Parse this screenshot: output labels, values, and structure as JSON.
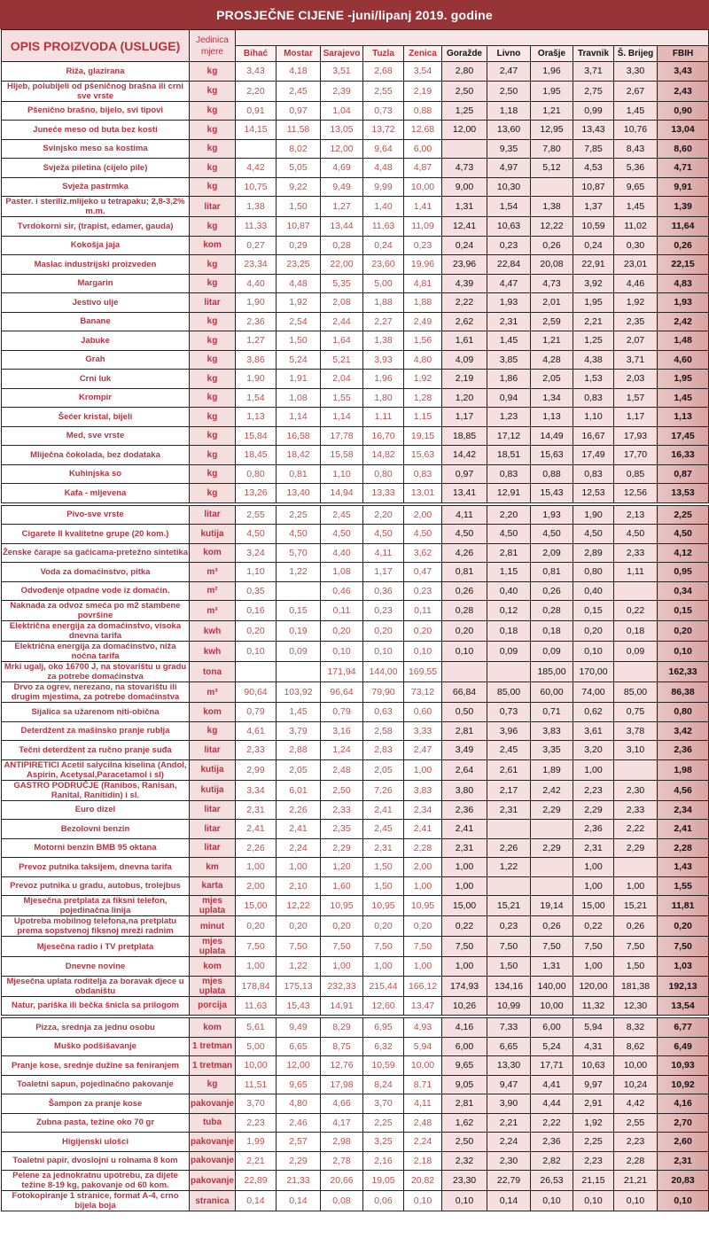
{
  "title": "PROSJEČNE CIJENE -juni/lipanj 2019. godine",
  "header": {
    "description": "OPIS PROIZVODA (USLUGE)",
    "unit": "Jedinica mjere",
    "cities": [
      "Bihać",
      "Mostar",
      "Sarajevo",
      "Tuzla",
      "Zenica",
      "Goražde",
      "Livno",
      "Orašje",
      "Travnik",
      "Š. Brijeg"
    ],
    "total": "FBIH"
  },
  "colors": {
    "title_bg": "#963437",
    "text_red": "#b8333f",
    "cell_pink": "#f5dfdf",
    "fbih_bg": "#e3b2b2"
  },
  "sections": [
    [
      {
        "name": "Riža, glazirana",
        "unit": "kg",
        "values": [
          "3,43",
          "4,18",
          "3,51",
          "2,68",
          "3,54",
          "2,80",
          "2,47",
          "1,96",
          "3,71",
          "3,30"
        ],
        "fbih": "3,43"
      },
      {
        "name": "Hljeb, polubijeli od pšeničnog brašna ili crni sve vrste",
        "unit": "kg",
        "values": [
          "2,20",
          "2,45",
          "2,39",
          "2,55",
          "2,19",
          "2,50",
          "2,50",
          "1,95",
          "2,75",
          "2,67"
        ],
        "fbih": "2,43"
      },
      {
        "name": "Pšenično brašno, bijelo, svi tipovi",
        "unit": "kg",
        "values": [
          "0,91",
          "0,97",
          "1,04",
          "0,73",
          "0,88",
          "1,25",
          "1,18",
          "1,21",
          "0,99",
          "1,45"
        ],
        "fbih": "0,90"
      },
      {
        "name": "Juneće meso od buta bez kosti",
        "unit": "kg",
        "values": [
          "14,15",
          "11,58",
          "13,05",
          "13,72",
          "12,68",
          "12,00",
          "13,60",
          "12,95",
          "13,43",
          "10,76"
        ],
        "fbih": "13,04"
      },
      {
        "name": "Svinjsko meso sa kostima",
        "unit": "kg",
        "values": [
          "",
          "8,02",
          "12,00",
          "9,64",
          "6,00",
          "",
          "9,35",
          "7,80",
          "7,85",
          "8,43"
        ],
        "fbih": "8,60"
      },
      {
        "name": "Svježa piletina (cijelo pile)",
        "unit": "kg",
        "values": [
          "4,42",
          "5,05",
          "4,69",
          "4,48",
          "4,87",
          "4,73",
          "4,97",
          "5,12",
          "4,53",
          "5,36"
        ],
        "fbih": "4,71"
      },
      {
        "name": "Svježa pastrmka",
        "unit": "kg",
        "values": [
          "10,75",
          "9,22",
          "9,49",
          "9,99",
          "10,00",
          "9,00",
          "10,30",
          "",
          "10,87",
          "9,65"
        ],
        "fbih": "9,91"
      },
      {
        "name": "Paster. i steriliz.mlijeko u tetrapaku; 2,8-3,2% m.m.",
        "unit": "litar",
        "values": [
          "1,38",
          "1,50",
          "1,27",
          "1,40",
          "1,41",
          "1,31",
          "1,54",
          "1,38",
          "1,37",
          "1,45"
        ],
        "fbih": "1,39"
      },
      {
        "name": "Tvrdokorni sir, (trapist, edamer, gauda)",
        "unit": "kg",
        "values": [
          "11,33",
          "10,87",
          "13,44",
          "11,63",
          "11,09",
          "12,41",
          "10,63",
          "12,22",
          "10,59",
          "11,02"
        ],
        "fbih": "11,64"
      },
      {
        "name": "Kokošja jaja",
        "unit": "kom",
        "values": [
          "0,27",
          "0,29",
          "0,28",
          "0,24",
          "0,23",
          "0,24",
          "0,23",
          "0,26",
          "0,24",
          "0,30"
        ],
        "fbih": "0,26"
      },
      {
        "name": "Maslac industrijski proizveden",
        "unit": "kg",
        "values": [
          "23,34",
          "23,25",
          "22,00",
          "23,60",
          "19,96",
          "23,96",
          "22,84",
          "20,08",
          "22,91",
          "23,01"
        ],
        "fbih": "22,15"
      },
      {
        "name": "Margarin",
        "unit": "kg",
        "values": [
          "4,40",
          "4,48",
          "5,35",
          "5,00",
          "4,81",
          "4,39",
          "4,47",
          "4,73",
          "3,92",
          "4,46"
        ],
        "fbih": "4,83"
      },
      {
        "name": "Jestivo ulje",
        "unit": "litar",
        "values": [
          "1,90",
          "1,92",
          "2,08",
          "1,88",
          "1,88",
          "2,22",
          "1,93",
          "2,01",
          "1,95",
          "1,92"
        ],
        "fbih": "1,93"
      },
      {
        "name": "Banane",
        "unit": "kg",
        "values": [
          "2,36",
          "2,54",
          "2,44",
          "2,27",
          "2,49",
          "2,62",
          "2,31",
          "2,59",
          "2,21",
          "2,35"
        ],
        "fbih": "2,42"
      },
      {
        "name": "Jabuke",
        "unit": "kg",
        "values": [
          "1,27",
          "1,50",
          "1,64",
          "1,38",
          "1,56",
          "1,61",
          "1,45",
          "1,21",
          "1,25",
          "2,07"
        ],
        "fbih": "1,48"
      },
      {
        "name": "Grah",
        "unit": "kg",
        "values": [
          "3,86",
          "5,24",
          "5,21",
          "3,93",
          "4,80",
          "4,09",
          "3,85",
          "4,28",
          "4,38",
          "3,71"
        ],
        "fbih": "4,60"
      },
      {
        "name": "Crni luk",
        "unit": "kg",
        "values": [
          "1,90",
          "1,91",
          "2,04",
          "1,96",
          "1,92",
          "2,19",
          "1,86",
          "2,05",
          "1,53",
          "2,03"
        ],
        "fbih": "1,95"
      },
      {
        "name": "Krompir",
        "unit": "kg",
        "values": [
          "1,54",
          "1,08",
          "1,55",
          "1,80",
          "1,28",
          "1,20",
          "0,94",
          "1,34",
          "0,83",
          "1,57"
        ],
        "fbih": "1,45"
      },
      {
        "name": "Šećer kristal, bijeli",
        "unit": "kg",
        "values": [
          "1,13",
          "1,14",
          "1,14",
          "1,11",
          "1,15",
          "1,17",
          "1,23",
          "1,13",
          "1,10",
          "1,17"
        ],
        "fbih": "1,13"
      },
      {
        "name": "Med, sve vrste",
        "unit": "kg",
        "values": [
          "15,84",
          "16,58",
          "17,78",
          "16,70",
          "19,15",
          "18,85",
          "17,12",
          "14,49",
          "16,67",
          "17,93"
        ],
        "fbih": "17,45"
      },
      {
        "name": "Mliječna čokolada, bez dodataka",
        "unit": "kg",
        "values": [
          "18,45",
          "18,42",
          "15,58",
          "14,82",
          "15,63",
          "14,42",
          "18,51",
          "15,63",
          "17,49",
          "17,70"
        ],
        "fbih": "16,33"
      },
      {
        "name": "Kuhinjska so",
        "unit": "kg",
        "values": [
          "0,80",
          "0,81",
          "1,10",
          "0,80",
          "0,83",
          "0,97",
          "0,83",
          "0,88",
          "0,83",
          "0,85"
        ],
        "fbih": "0,87"
      },
      {
        "name": "Kafa - mljevena",
        "unit": "kg",
        "values": [
          "13,26",
          "13,40",
          "14,94",
          "13,33",
          "13,01",
          "13,41",
          "12,91",
          "15,43",
          "12,53",
          "12,56"
        ],
        "fbih": "13,53"
      }
    ],
    [
      {
        "name": "Pivo-sve vrste",
        "unit": "litar",
        "values": [
          "2,55",
          "2,25",
          "2,45",
          "2,20",
          "2,00",
          "4,11",
          "2,20",
          "1,93",
          "1,90",
          "2,13"
        ],
        "fbih": "2,25"
      },
      {
        "name": "Cigarete II kvalitetne grupe (20 kom.)",
        "unit": "kutija",
        "values": [
          "4,50",
          "4,50",
          "4,50",
          "4,50",
          "4,50",
          "4,50",
          "4,50",
          "4,50",
          "4,50",
          "4,50"
        ],
        "fbih": "4,50"
      },
      {
        "name": "Ženske čarape sa gaćicama-pretežno sintetika",
        "unit": "kom",
        "values": [
          "3,24",
          "5,70",
          "4,40",
          "4,11",
          "3,62",
          "4,26",
          "2,81",
          "2,09",
          "2,89",
          "2,33"
        ],
        "fbih": "4,12"
      },
      {
        "name": "Voda za domaćinstvo, pitka",
        "unit": "m³",
        "values": [
          "1,10",
          "1,22",
          "1,08",
          "1,17",
          "0,47",
          "0,81",
          "1,15",
          "0,81",
          "0,80",
          "1,11"
        ],
        "fbih": "0,95"
      },
      {
        "name": "Odvođenje otpadne vode iz domaćin.",
        "unit": "m²",
        "values": [
          "0,35",
          "",
          "0,46",
          "0,36",
          "0,23",
          "0,26",
          "0,40",
          "0,26",
          "0,40",
          ""
        ],
        "fbih": "0,34"
      },
      {
        "name": "Naknada za odvoz smeća po m2 stambene površine",
        "unit": "m³",
        "values": [
          "0,16",
          "0,15",
          "0,11",
          "0,23",
          "0,11",
          "0,28",
          "0,12",
          "0,28",
          "0,15",
          "0,22"
        ],
        "fbih": "0,15"
      },
      {
        "name": "Električna energija  za domaćinstvo, visoka dnevna  tarifa",
        "unit": "kwh",
        "values": [
          "0,20",
          "0,19",
          "0,20",
          "0,20",
          "0,20",
          "0,20",
          "0,18",
          "0,18",
          "0,20",
          "0,18"
        ],
        "fbih": "0,20"
      },
      {
        "name": "Električna energija  za domaćinstvo, niža noćna  tarifa",
        "unit": "kwh",
        "values": [
          "0,10",
          "0,09",
          "0,10",
          "0,10",
          "0,10",
          "0,10",
          "0,09",
          "0,09",
          "0,10",
          "0,09"
        ],
        "fbih": "0,10"
      },
      {
        "name": "Mrki ugalj, oko 16700 J, na stovarištu u gradu za potrebe domaćinstva",
        "unit": "tona",
        "values": [
          "",
          "",
          "171,94",
          "144,00",
          "169,55",
          "",
          "",
          "185,00",
          "170,00",
          ""
        ],
        "fbih": "162,33"
      },
      {
        "name": "Drvo za ogrev, nerezano, na stovarištu ili drugim mjestima, za potrebe domaćinstva",
        "unit": "m³",
        "values": [
          "90,64",
          "103,92",
          "96,64",
          "79,90",
          "73,12",
          "66,84",
          "85,00",
          "60,00",
          "74,00",
          "85,00"
        ],
        "fbih": "86,38"
      },
      {
        "name": "Sijalica sa užarenom niti-obična",
        "unit": "kom",
        "values": [
          "0,79",
          "1,45",
          "0,79",
          "0,63",
          "0,60",
          "0,50",
          "0,73",
          "0,71",
          "0,62",
          "0,75"
        ],
        "fbih": "0,80"
      },
      {
        "name": "Deterdžent za mašinsko pranje rublja",
        "unit": "kg",
        "values": [
          "4,61",
          "3,79",
          "3,16",
          "2,58",
          "3,33",
          "2,81",
          "3,96",
          "3,83",
          "3,61",
          "3,78"
        ],
        "fbih": "3,42"
      },
      {
        "name": "Tečni deterdžent za ručno pranje suđa",
        "unit": "litar",
        "values": [
          "2,33",
          "2,88",
          "1,24",
          "2,83",
          "2,47",
          "3,49",
          "2,45",
          "3,35",
          "3,20",
          "3,10"
        ],
        "fbih": "2,36"
      },
      {
        "name": "ANTIPIRETICI Acetil salycilna kiselina (Andol, Aspirin, Acetysal,Paracetamol i sl)",
        "unit": "kutija",
        "values": [
          "2,99",
          "2,05",
          "2,48",
          "2,05",
          "1,00",
          "2,64",
          "2,61",
          "1,89",
          "1,00",
          ""
        ],
        "fbih": "1,98"
      },
      {
        "name": "GASTRO PODRUČJE  (Ranibos, Ranisan, Ranital, Ranitidin) i sl.",
        "unit": "kutija",
        "values": [
          "3,34",
          "6,01",
          "2,50",
          "7,26",
          "3,83",
          "3,80",
          "2,17",
          "2,42",
          "2,23",
          "2,30"
        ],
        "fbih": "4,56"
      },
      {
        "name": "Euro dizel",
        "unit": "litar",
        "values": [
          "2,31",
          "2,26",
          "2,33",
          "2,41",
          "2,34",
          "2,36",
          "2,31",
          "2,29",
          "2,29",
          "2,33"
        ],
        "fbih": "2,34"
      },
      {
        "name": "Bezolovni  benzin",
        "unit": "litar",
        "values": [
          "2,41",
          "2,41",
          "2,35",
          "2,45",
          "2,41",
          "2,41",
          "",
          "",
          "2,36",
          "2,22"
        ],
        "fbih": "2,41"
      },
      {
        "name": "Motorni benzin BMB 95 oktana",
        "unit": "litar",
        "values": [
          "2,26",
          "2,24",
          "2,29",
          "2,31",
          "2,28",
          "2,31",
          "2,26",
          "2,29",
          "2,31",
          "2,29"
        ],
        "fbih": "2,28"
      },
      {
        "name": "Prevoz putnika taksijem, dnevna tarifa",
        "unit": "km",
        "values": [
          "1,00",
          "1,00",
          "1,20",
          "1,50",
          "2,00",
          "1,00",
          "1,22",
          "",
          "1,00",
          ""
        ],
        "fbih": "1,43"
      },
      {
        "name": "Prevoz putnika u gradu,  autobus, trolejbus",
        "unit": "karta",
        "values": [
          "2,00",
          "2,10",
          "1,60",
          "1,50",
          "1,00",
          "1,00",
          "",
          "",
          "1,00",
          "1,00"
        ],
        "fbih": "1,55"
      },
      {
        "name": "Mjesečna pretplata za fiksni telefon, pojedinačna linija",
        "unit": "mjes uplata",
        "values": [
          "15,00",
          "12,22",
          "10,95",
          "10,95",
          "10,95",
          "15,00",
          "15,21",
          "19,14",
          "15,00",
          "15,21"
        ],
        "fbih": "11,81"
      },
      {
        "name": "Upotreba mobilnog telefona,na pretplatu prema sopstvenoj fiksnoj mreži radnim",
        "unit": "minut",
        "values": [
          "0,20",
          "0,20",
          "0,20",
          "0,20",
          "0,20",
          "0,22",
          "0,23",
          "0,26",
          "0,22",
          "0,26"
        ],
        "fbih": "0,20"
      },
      {
        "name": "Mjesečna radio i TV pretplata",
        "unit": "mjes uplata",
        "values": [
          "7,50",
          "7,50",
          "7,50",
          "7,50",
          "7,50",
          "7,50",
          "7,50",
          "7,50",
          "7,50",
          "7,50"
        ],
        "fbih": "7,50"
      },
      {
        "name": "Dnevne novine",
        "unit": "kom",
        "values": [
          "1,00",
          "1,22",
          "1,00",
          "1,00",
          "1,00",
          "1,00",
          "1,50",
          "1,31",
          "1,00",
          "1,50"
        ],
        "fbih": "1,03"
      },
      {
        "name": "Mjesečna uplata roditelja za boravak djece u obdaništu",
        "unit": "mjes uplata",
        "values": [
          "178,84",
          "175,13",
          "232,33",
          "215,44",
          "166,12",
          "174,93",
          "134,16",
          "140,00",
          "120,00",
          "181,38"
        ],
        "fbih": "192,13"
      },
      {
        "name": "Natur, pariška ili bečka šnicla sa prilogom",
        "unit": "porcija",
        "values": [
          "11,63",
          "15,43",
          "14,91",
          "12,60",
          "13,47",
          "10,26",
          "10,99",
          "10,00",
          "11,32",
          "12,30"
        ],
        "fbih": "13,54"
      }
    ],
    [
      {
        "name": "Pizza, srednja za jednu osobu",
        "unit": "kom",
        "values": [
          "5,61",
          "9,49",
          "8,29",
          "6,95",
          "4,93",
          "4,16",
          "7,33",
          "6,00",
          "5,94",
          "8,32"
        ],
        "fbih": "6,77"
      },
      {
        "name": "Muško podšišavanje",
        "unit": "1 tretman",
        "values": [
          "5,00",
          "6,65",
          "8,75",
          "6,32",
          "5,94",
          "6,00",
          "6,65",
          "5,24",
          "4,31",
          "8,62"
        ],
        "fbih": "6,49"
      },
      {
        "name": "Pranje kose, srednje dužine sa feniranjem",
        "unit": "1 tretman",
        "values": [
          "10,00",
          "12,00",
          "12,76",
          "10,59",
          "10,00",
          "9,65",
          "13,30",
          "17,71",
          "10,63",
          "10,00"
        ],
        "fbih": "10,93"
      },
      {
        "name": "Toaletni sapun, pojedinačno pakovanje",
        "unit": "kg",
        "values": [
          "11,51",
          "9,65",
          "17,98",
          "8,24",
          "8,71",
          "9,05",
          "9,47",
          "4,41",
          "9,97",
          "10,24"
        ],
        "fbih": "10,92"
      },
      {
        "name": "Šampon za pranje kose",
        "unit": "pakovanje",
        "values": [
          "3,70",
          "4,80",
          "4,66",
          "3,70",
          "4,11",
          "2,81",
          "3,90",
          "4,44",
          "2,91",
          "4,42"
        ],
        "fbih": "4,16"
      },
      {
        "name": "Zubna pasta, težine oko 70 gr",
        "unit": "tuba",
        "values": [
          "2,23",
          "2,46",
          "4,17",
          "2,25",
          "2,48",
          "1,62",
          "2,21",
          "2,22",
          "1,92",
          "2,55"
        ],
        "fbih": "2,70"
      },
      {
        "name": "Higijenski ulošci",
        "unit": "pakovanje",
        "values": [
          "1,99",
          "2,57",
          "2,98",
          "3,25",
          "2,24",
          "2,50",
          "2,24",
          "2,36",
          "2,25",
          "2,23"
        ],
        "fbih": "2,60"
      },
      {
        "name": "Toaletni papir,  dvoslojni u rolnama  8 kom",
        "unit": "pakovanje",
        "values": [
          "2,21",
          "2,29",
          "2,78",
          "2,16",
          "2,18",
          "2,32",
          "2,30",
          "2,82",
          "2,23",
          "2,28"
        ],
        "fbih": "2,31"
      },
      {
        "name": "Pelene za jednokratnu upotrebu, za dijete težine 8-19 kg, pakovanje od 60 kom.",
        "unit": "pakovanje",
        "values": [
          "22,89",
          "21,33",
          "20,66",
          "19,05",
          "20,82",
          "23,30",
          "22,79",
          "26,53",
          "21,15",
          "21,21"
        ],
        "fbih": "20,83"
      },
      {
        "name": "Fotokopiranje 1 stranice, format A-4, crno bijela boja",
        "unit": "stranica",
        "values": [
          "0,14",
          "0,14",
          "0,08",
          "0,06",
          "0,10",
          "0,10",
          "0,14",
          "0,10",
          "0,10",
          "0,10"
        ],
        "fbih": "0,10"
      }
    ]
  ]
}
